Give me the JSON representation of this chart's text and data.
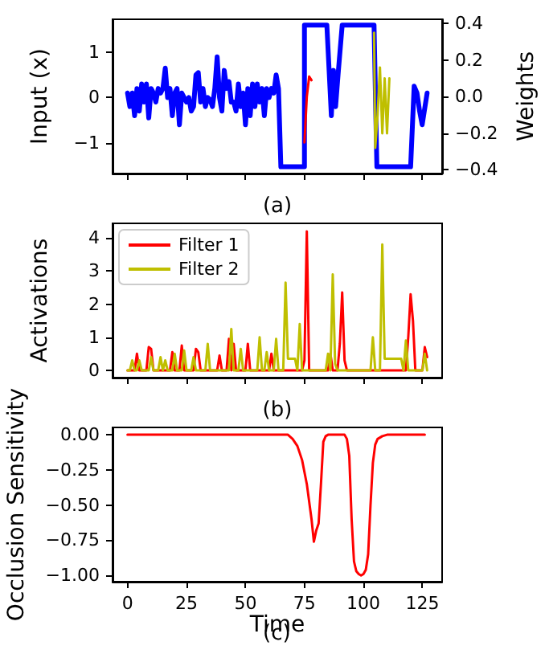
{
  "chart_data": [
    {
      "type": "line",
      "xlabel": "(a)",
      "ylabel": "Input (x)",
      "y2label": "Weights",
      "xlim": [
        -6.35,
        133.35
      ],
      "xticks": [
        0,
        25,
        50,
        75,
        100,
        125
      ],
      "ylim": [
        -1.68,
        1.73
      ],
      "yticks": [
        {
          "value": -1,
          "label": "−1"
        },
        0,
        1
      ],
      "y2lim": [
        -0.42,
        0.423
      ],
      "y2ticks": [
        {
          "value": -0.4,
          "label": "−0.4"
        },
        {
          "value": -0.2,
          "label": "−0.2"
        },
        {
          "value": 0,
          "label": "0.0"
        },
        0.2,
        0.4
      ],
      "tick_labels": "y",
      "grid": false,
      "legend": false,
      "marker": "none",
      "line_style": "solid",
      "series": [
        {
          "color": "#0000ff",
          "axis": "y",
          "x": [
            0,
            1,
            2,
            3,
            4,
            5,
            6,
            7,
            8,
            9,
            10,
            11,
            12,
            13,
            14,
            15,
            16,
            17,
            18,
            19,
            20,
            21,
            22,
            23,
            24,
            25,
            26,
            27,
            28,
            29,
            30,
            31,
            32,
            33,
            34,
            35,
            36,
            37,
            38,
            39,
            40,
            41,
            42,
            43,
            44,
            45,
            46,
            47,
            48,
            49,
            50,
            51,
            52,
            53,
            54,
            55,
            56,
            57,
            58,
            59,
            60,
            61,
            62,
            63,
            64,
            65,
            75,
            75,
            84.5,
            86.4,
            87.3,
            88.2,
            89.4,
            91,
            104.5,
            105.7,
            120,
            121.5,
            122.7,
            123.8,
            124.9,
            127
          ],
          "values": [
            0.1,
            -0.2,
            0.1,
            -0.4,
            0.2,
            -0.3,
            0.3,
            -0.1,
            0.3,
            -0.45,
            0.2,
            0.1,
            -0.1,
            0.2,
            0.1,
            0.2,
            0.65,
            0,
            0.2,
            -0.4,
            0.1,
            0.2,
            -0.6,
            0.1,
            0,
            -0.1,
            0,
            -0.3,
            -0.2,
            0.5,
            0.55,
            -0.1,
            0.2,
            -0.2,
            0,
            -0.05,
            -0.2,
            0.2,
            0.9,
            0,
            -0.3,
            0.6,
            0.2,
            0.35,
            -0.1,
            -0.1,
            -0.3,
            0.3,
            -0.2,
            0.1,
            -0.6,
            0.2,
            -0.4,
            0.3,
            -0.2,
            0.3,
            -0.1,
            0.2,
            -0.4,
            0.2,
            0,
            0.2,
            0.1,
            0.5,
            0.2,
            -1.53,
            -1.53,
            1.6,
            1.6,
            -0.4,
            0.6,
            -0.2,
            0.6,
            1.6,
            1.6,
            -1.53,
            -1.53,
            0.25,
            0.1,
            -0.3,
            -0.6,
            0.1
          ]
        },
        {
          "color": "#ff0000",
          "axis": "y2",
          "x": [
            75,
            76,
            77,
            78
          ],
          "values": [
            -0.25,
            0,
            0.11,
            0.09
          ]
        },
        {
          "color": "#bfbf00",
          "axis": "y2",
          "x": [
            104.5,
            105,
            106,
            107,
            108,
            109,
            110,
            111
          ],
          "values": [
            0.35,
            -0.28,
            -0.1,
            0.16,
            -0.2,
            0.1,
            -0.2,
            0.1
          ]
        }
      ]
    },
    {
      "type": "line",
      "xlabel": "(b)",
      "ylabel": "Activations",
      "xlim": [
        -6.35,
        133.35
      ],
      "xticks": [
        0,
        25,
        50,
        75,
        100,
        125
      ],
      "ylim": [
        -0.22,
        4.44
      ],
      "yticks": [
        0,
        1,
        2,
        3,
        4
      ],
      "tick_labels": "y",
      "grid": false,
      "legend": "top left",
      "marker": "none",
      "line_style": "solid",
      "x": [
        0,
        1,
        2,
        3,
        4,
        5,
        6,
        7,
        8,
        9,
        10,
        11,
        12,
        13,
        14,
        15,
        16,
        17,
        18,
        19,
        20,
        21,
        22,
        23,
        24,
        25,
        26,
        27,
        28,
        29,
        30,
        31,
        32,
        33,
        34,
        35,
        36,
        37,
        38,
        39,
        40,
        41,
        42,
        43,
        44,
        45,
        46,
        47,
        48,
        49,
        50,
        51,
        52,
        53,
        54,
        55,
        56,
        57,
        58,
        59,
        60,
        61,
        62,
        63,
        64,
        65,
        66,
        67,
        68,
        69,
        70,
        71,
        72,
        73,
        74,
        75,
        76,
        77,
        78,
        79,
        80,
        81,
        82,
        83,
        84,
        85,
        86,
        87,
        88,
        89,
        90,
        91,
        92,
        93,
        94,
        95,
        96,
        97,
        98,
        99,
        100,
        101,
        102,
        103,
        104,
        105,
        106,
        107,
        108,
        109,
        110,
        111,
        112,
        113,
        114,
        115,
        116,
        117,
        118,
        119,
        120,
        121,
        122,
        123,
        124,
        125,
        126,
        127
      ],
      "series": [
        {
          "name": "Filter 1",
          "color": "#ff0000",
          "values": [
            0,
            0,
            0,
            0,
            0.5,
            0,
            0,
            0,
            0,
            0.7,
            0.65,
            0,
            0,
            0,
            0,
            0,
            0,
            0,
            0,
            0.55,
            0,
            0,
            0,
            0.75,
            0,
            0,
            0,
            0,
            0,
            0.65,
            0.55,
            0,
            0,
            0,
            0,
            0,
            0,
            0,
            0,
            0.45,
            0,
            0,
            0,
            0.95,
            0,
            0.8,
            0,
            0,
            0,
            0,
            0,
            0.8,
            0,
            0,
            0,
            0,
            0,
            0,
            0,
            0,
            0,
            0.5,
            0,
            0,
            0,
            0,
            0,
            0,
            0,
            0,
            0,
            0,
            0,
            0,
            0,
            0.3,
            4.2,
            0,
            0,
            0,
            0,
            0,
            0,
            0,
            0,
            0,
            0.5,
            0,
            0,
            0,
            0.8,
            2.35,
            0.3,
            0,
            0,
            0,
            0,
            0,
            0,
            0,
            0,
            0,
            0,
            0,
            0,
            0,
            0,
            0,
            0,
            0,
            0,
            0,
            0,
            0,
            0,
            0,
            0,
            0,
            0,
            1.0,
            2.3,
            1.5,
            0,
            0,
            0,
            0,
            0.7,
            0.4
          ]
        },
        {
          "name": "Filter 2",
          "color": "#bfbf00",
          "values": [
            0,
            0,
            0.3,
            0,
            0,
            0.3,
            0,
            0,
            0,
            0,
            0.4,
            0,
            0,
            0,
            0.4,
            0,
            0.3,
            0,
            0,
            0,
            0.5,
            0,
            0,
            0,
            0.6,
            0,
            0,
            0,
            0.4,
            0,
            0,
            0,
            0,
            0,
            0.8,
            0,
            0,
            0,
            0,
            0,
            0,
            0,
            0,
            0,
            1.25,
            0,
            0,
            0,
            0.65,
            0,
            0,
            0,
            0,
            0,
            0,
            0,
            1.0,
            0,
            0,
            0.55,
            0,
            0,
            0,
            0.95,
            0,
            0,
            0,
            2.65,
            0.35,
            0.35,
            0.35,
            0.35,
            0,
            1.4,
            0,
            0,
            0,
            0,
            0,
            0,
            0,
            0,
            0,
            0,
            0,
            0.5,
            0,
            2.9,
            0.2,
            0,
            0,
            0,
            0,
            0,
            0,
            0,
            0,
            0,
            0,
            0,
            0,
            0,
            0,
            0,
            1.0,
            0,
            0,
            0,
            3.8,
            0.35,
            0.35,
            0.35,
            0.35,
            0.35,
            0.35,
            0.35,
            0.35,
            0,
            0.9,
            0,
            0,
            0,
            0,
            0,
            0,
            0,
            0.5,
            0
          ]
        }
      ]
    },
    {
      "type": "line",
      "xlabel": "Time",
      "ylabel": "Occlusion Sensitivity",
      "annotations": [
        "(c)"
      ],
      "xlim": [
        -6.35,
        133.35
      ],
      "xticks": [
        0,
        25,
        50,
        75,
        100,
        125
      ],
      "ylim": [
        -1.044,
        0.052
      ],
      "yticks": [
        {
          "value": -1,
          "label": "−1.00"
        },
        {
          "value": -0.75,
          "label": "−0.75"
        },
        {
          "value": -0.5,
          "label": "−0.50"
        },
        {
          "value": -0.25,
          "label": "−0.25"
        },
        {
          "value": 0,
          "label": "0.00"
        }
      ],
      "grid": false,
      "legend": false,
      "marker": "none",
      "line_style": "solid",
      "series": [
        {
          "color": "#ff0000",
          "x": [
            0,
            68,
            70,
            72,
            74,
            76,
            78,
            79,
            80,
            81,
            82,
            83,
            84,
            85,
            92,
            93,
            94,
            95,
            96,
            97,
            98,
            99,
            100,
            101,
            102,
            103,
            104,
            105,
            106,
            108,
            110,
            113,
            126
          ],
          "values": [
            0,
            0,
            -0.03,
            -0.08,
            -0.18,
            -0.35,
            -0.6,
            -0.76,
            -0.68,
            -0.63,
            -0.35,
            -0.05,
            -0.01,
            0,
            0,
            -0.03,
            -0.15,
            -0.6,
            -0.9,
            -0.97,
            -0.99,
            -1.0,
            -0.99,
            -0.96,
            -0.85,
            -0.5,
            -0.2,
            -0.07,
            -0.03,
            -0.01,
            0,
            0,
            0
          ]
        }
      ]
    }
  ]
}
